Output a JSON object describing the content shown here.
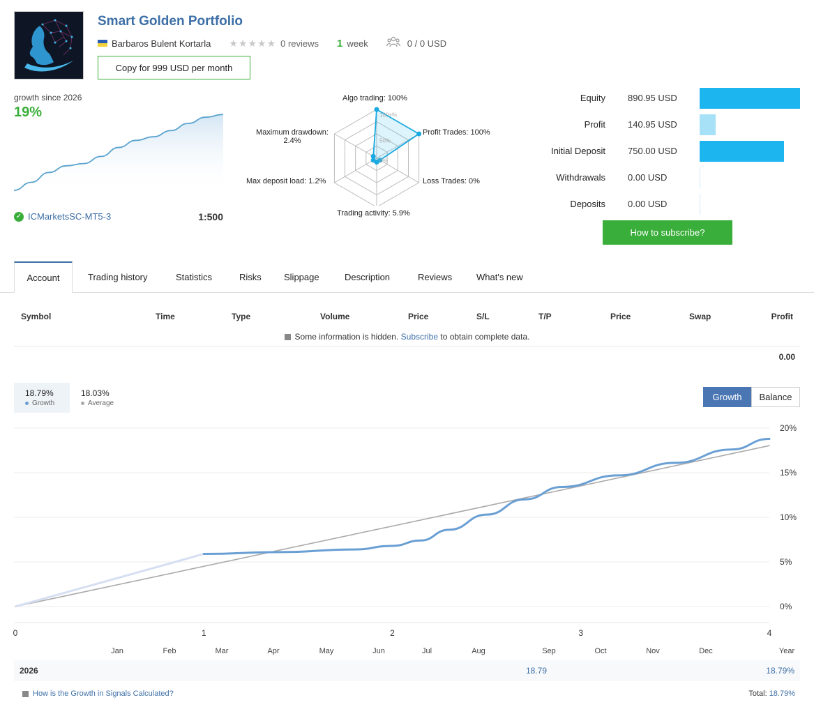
{
  "header": {
    "title": "Smart Golden Portfolio",
    "author": "Barbaros Bulent Kortarla",
    "stars": "★★★★★",
    "reviews": "0 reviews",
    "weeks_num": "1",
    "weeks_label": "week",
    "subscribers": "0 / 0 USD",
    "copy_button": "Copy for 999 USD per month"
  },
  "summary": {
    "growth_label": "growth since 2026",
    "growth_value": "19%",
    "broker": "ICMarketsSC-MT5-3",
    "leverage": "1:500",
    "mini_chart": [
      0,
      1.8,
      4.0,
      5.5,
      6.0,
      7.6,
      9.6,
      11.2,
      12.0,
      13.4,
      15.0,
      16.4,
      17.0
    ]
  },
  "radar": {
    "labels": {
      "algo": "Algo trading: 100%",
      "profit": "Profit Trades: 100%",
      "loss": "Loss Trades: 0%",
      "activity": "Trading activity: 5.9%",
      "deposit_load": "Max deposit load: 1.2%",
      "drawdown_1": "Maximum drawdown:",
      "drawdown_2": "2.4%"
    },
    "rings": [
      "100+%",
      "50%",
      "0%"
    ],
    "values": [
      100,
      100,
      0,
      5.9,
      1.2,
      2.4
    ]
  },
  "stats": [
    {
      "label": "Equity",
      "value": "890.95 USD",
      "fraction": 1.0,
      "color": "#1db5f0"
    },
    {
      "label": "Profit",
      "value": "140.95 USD",
      "fraction": 0.16,
      "color": "#a6e1f7"
    },
    {
      "label": "Initial Deposit",
      "value": "750.00 USD",
      "fraction": 0.84,
      "color": "#1db5f0"
    },
    {
      "label": "Withdrawals",
      "value": "0.00 USD",
      "fraction": 0,
      "color": "#1db5f0"
    },
    {
      "label": "Deposits",
      "value": "0.00 USD",
      "fraction": 0,
      "color": "#1db5f0"
    }
  ],
  "subscribe_button": "How to subscribe?",
  "tabs": [
    "Account",
    "Trading history",
    "Statistics",
    "Risks",
    "Slippage",
    "Description",
    "Reviews",
    "What's new"
  ],
  "table": {
    "headers": [
      "Symbol",
      "Time",
      "Type",
      "Volume",
      "Price",
      "S/L",
      "T/P",
      "Price",
      "Swap",
      "Profit"
    ],
    "hidden_prefix": "Some information is hidden.",
    "hidden_link": "Subscribe",
    "hidden_suffix": "to obtain complete data.",
    "total_profit": "0.00"
  },
  "legend": {
    "growth_value": "18.79%",
    "growth_label": "Growth",
    "average_value": "18.03%",
    "average_label": "Average"
  },
  "toggle": {
    "growth": "Growth",
    "balance": "Balance"
  },
  "colors": {
    "growth_line": "#6a9fd4",
    "average_line": "#aaaaaa",
    "accent": "#3aae3a",
    "link": "#3d6fa6"
  },
  "chart_data": {
    "type": "line",
    "x_ticks": [
      "0",
      "1",
      "2",
      "3",
      "4"
    ],
    "xlim": [
      0,
      4
    ],
    "y_ticks": [
      "0%",
      "5%",
      "10%",
      "15%",
      "20%"
    ],
    "ylim": [
      0,
      20
    ],
    "months": [
      "Jan",
      "Feb",
      "Mar",
      "Apr",
      "May",
      "Jun",
      "Jul",
      "Aug",
      "Sep",
      "Oct",
      "Nov",
      "Dec",
      "Year"
    ],
    "grid": true,
    "series": [
      {
        "name": "Growth",
        "x": [
          0,
          1,
          1.4,
          1.8,
          2.0,
          2.15,
          2.3,
          2.5,
          2.7,
          2.9,
          3.2,
          3.5,
          3.8,
          4.0
        ],
        "y": [
          0,
          5.9,
          6.1,
          6.4,
          6.8,
          7.4,
          8.6,
          10.3,
          12.0,
          13.4,
          14.7,
          16.1,
          17.6,
          18.79
        ]
      },
      {
        "name": "Average",
        "x": [
          0,
          4
        ],
        "y": [
          0,
          18.03
        ]
      }
    ]
  },
  "year_row": {
    "year": "2026",
    "value": "18.79",
    "year_total": "18.79%"
  },
  "footer": {
    "link": "How is the Growth in Signals Calculated?",
    "total_label": "Total:",
    "total_value": "18.79%"
  }
}
